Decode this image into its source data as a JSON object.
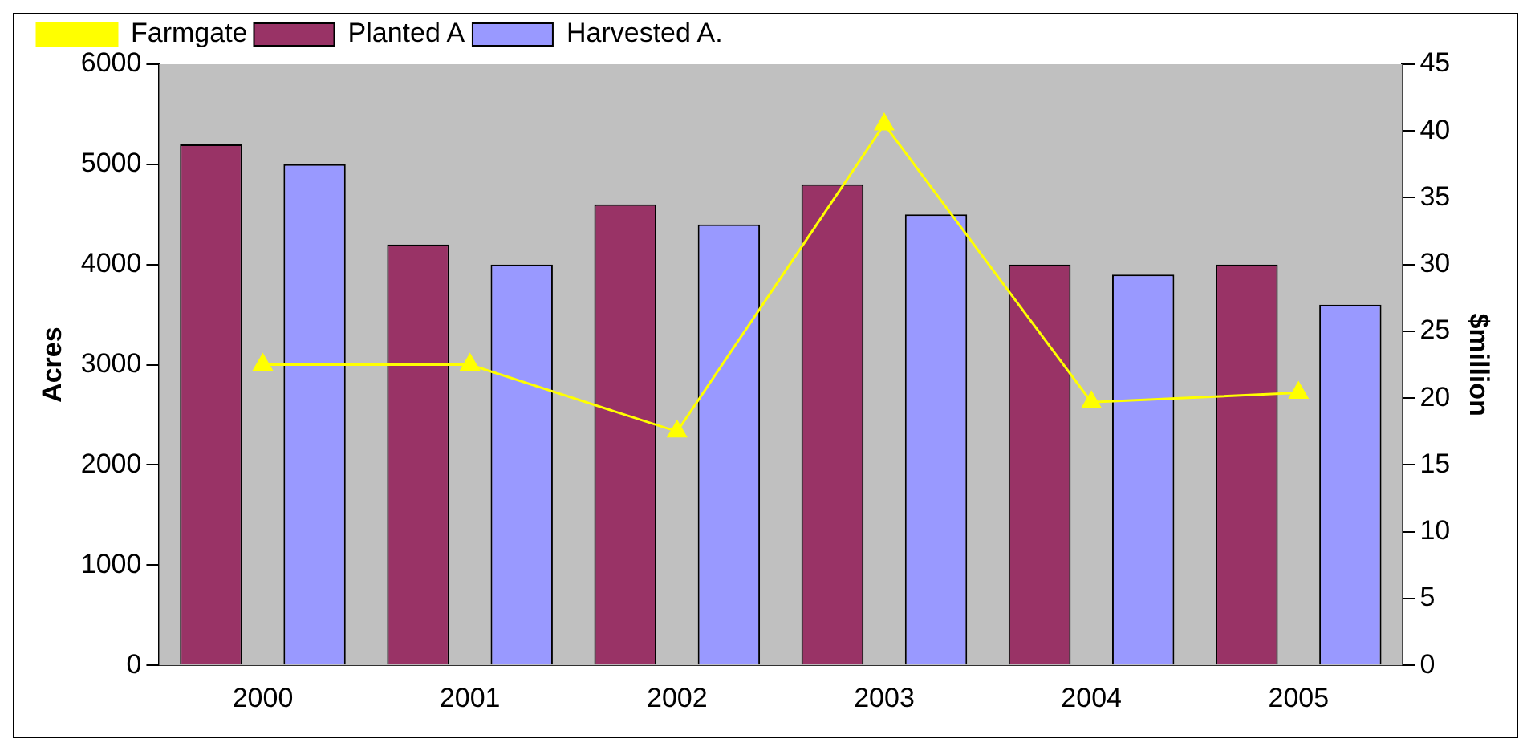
{
  "chart_data": {
    "type": "bar",
    "xlabel": null,
    "ylabel": "Acres",
    "y2label": "$million",
    "categories": [
      "2000",
      "2001",
      "2002",
      "2003",
      "2004",
      "2005"
    ],
    "series": [
      {
        "name": "Planted A",
        "color": "#993366",
        "values": [
          5200,
          4200,
          4600,
          4800,
          4000,
          4000
        ]
      },
      {
        "name": "Harvested A.",
        "color": "#9999ff",
        "values": [
          5000,
          4000,
          4400,
          4500,
          3900,
          3600
        ]
      },
      {
        "name": "Farmgate",
        "type": "line",
        "axis": "y2",
        "color": "#ffff00",
        "values": [
          22.5,
          22.5,
          17.5,
          40.5,
          19.7,
          20.4
        ]
      }
    ],
    "ylim": [
      0,
      6000
    ],
    "yticks": [
      0,
      1000,
      2000,
      3000,
      4000,
      5000,
      6000
    ],
    "y2lim": [
      0,
      45
    ],
    "y2ticks": [
      0,
      5,
      10,
      15,
      20,
      25,
      30,
      35,
      40,
      45
    ],
    "grid": false,
    "legend": "top",
    "marker": "triangle"
  }
}
